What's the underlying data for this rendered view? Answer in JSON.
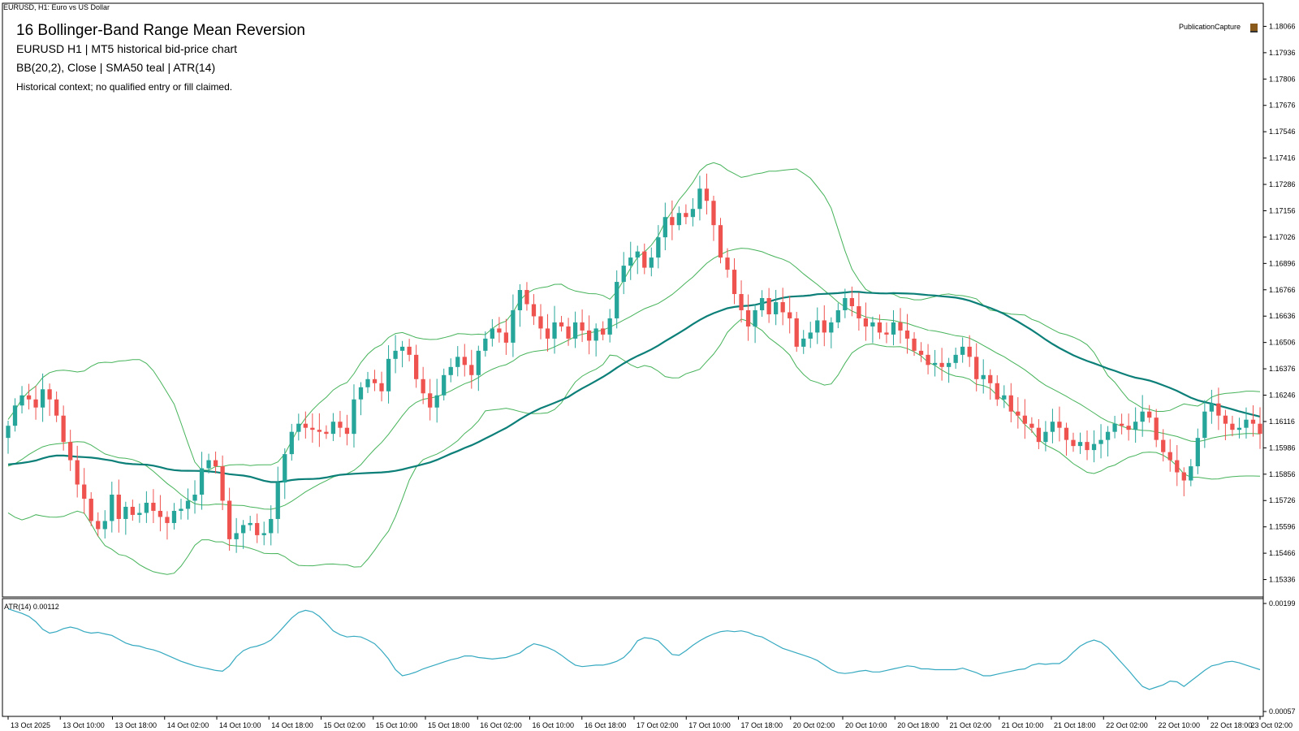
{
  "window": {
    "title": "EURUSD, H1:  Euro vs US Dollar"
  },
  "header": {
    "title": "16  Bollinger-Band Range Mean Reversion",
    "subtitle1": "EURUSD  H1  |  MT5 historical bid-price chart",
    "subtitle2": "BB(20,2), Close | SMA50 teal | ATR(14)",
    "note": "Historical context; no qualified entry or fill claimed."
  },
  "publication_label": "PublicationCapture",
  "colors": {
    "bull": "#26a69a",
    "bear": "#ef5350",
    "sma": "#0b7f78",
    "bb": "#46b35a",
    "atr": "#35a9c0",
    "frame": "#000000",
    "background": "#ffffff"
  },
  "icons": {
    "publication": "picture-icon"
  },
  "chart_data": [
    {
      "type": "candlestick",
      "symbol": "EURUSD",
      "timeframe": "H1",
      "ylim": [
        1.1525,
        1.1818
      ],
      "price_ticks": [
        "1.18066",
        "1.17936",
        "1.17806",
        "1.17676",
        "1.17546",
        "1.17416",
        "1.17286",
        "1.17156",
        "1.17026",
        "1.16896",
        "1.16766",
        "1.16636",
        "1.16506",
        "1.16376",
        "1.16246",
        "1.16116",
        "1.15986",
        "1.15856",
        "1.15726",
        "1.15596",
        "1.15466",
        "1.15336"
      ],
      "time_ticks": [
        "13 Oct 2025",
        "13 Oct 10:00",
        "13 Oct 18:00",
        "14 Oct 02:00",
        "14 Oct 10:00",
        "14 Oct 18:00",
        "15 Oct 02:00",
        "15 Oct 10:00",
        "15 Oct 18:00",
        "16 Oct 02:00",
        "16 Oct 10:00",
        "16 Oct 18:00",
        "17 Oct 02:00",
        "17 Oct 10:00",
        "17 Oct 18:00",
        "20 Oct 02:00",
        "20 Oct 10:00",
        "20 Oct 18:00",
        "21 Oct 02:00",
        "21 Oct 10:00",
        "21 Oct 18:00",
        "22 Oct 02:00",
        "22 Oct 10:00",
        "22 Oct 18:00",
        "23 Oct 02:00"
      ],
      "close_series": [
        1.16095,
        1.16195,
        1.16245,
        1.16225,
        1.16185,
        1.16275,
        1.16225,
        1.16145,
        1.16015,
        1.15925,
        1.15805,
        1.15735,
        1.15625,
        1.15585,
        1.15625,
        1.15755,
        1.15635,
        1.15695,
        1.15655,
        1.15665,
        1.15715,
        1.15675,
        1.15645,
        1.15615,
        1.15675,
        1.15685,
        1.15725,
        1.15755,
        1.15885,
        1.15925,
        1.15895,
        1.15725,
        1.15535,
        1.15565,
        1.15605,
        1.15615,
        1.15555,
        1.15565,
        1.15635,
        1.15815,
        1.15955,
        1.16065,
        1.16105,
        1.16085,
        1.16075,
        1.16065,
        1.16055,
        1.16115,
        1.16085,
        1.16055,
        1.16225,
        1.16285,
        1.16325,
        1.16305,
        1.16265,
        1.16425,
        1.16465,
        1.16485,
        1.16445,
        1.16325,
        1.16255,
        1.16185,
        1.16245,
        1.16345,
        1.16385,
        1.16435,
        1.16395,
        1.16345,
        1.16465,
        1.16525,
        1.16575,
        1.16555,
        1.16505,
        1.16665,
        1.16765,
        1.16695,
        1.16635,
        1.16575,
        1.16525,
        1.16605,
        1.16585,
        1.16525,
        1.16605,
        1.16565,
        1.16515,
        1.16575,
        1.16545,
        1.16625,
        1.16805,
        1.16885,
        1.16925,
        1.16955,
        1.16875,
        1.16925,
        1.17025,
        1.17125,
        1.17085,
        1.17145,
        1.17125,
        1.17165,
        1.17265,
        1.17205,
        1.17085,
        1.16925,
        1.16865,
        1.16745,
        1.16665,
        1.16585,
        1.16665,
        1.16725,
        1.16645,
        1.16705,
        1.16655,
        1.16625,
        1.16485,
        1.16525,
        1.16555,
        1.16615,
        1.16555,
        1.16605,
        1.16665,
        1.16725,
        1.16685,
        1.16625,
        1.16585,
        1.16605,
        1.16555,
        1.16545,
        1.16605,
        1.16565,
        1.16525,
        1.16465,
        1.16445,
        1.16395,
        1.16405,
        1.16385,
        1.16405,
        1.16445,
        1.16485,
        1.16435,
        1.16325,
        1.16345,
        1.16305,
        1.16225,
        1.16245,
        1.16165,
        1.16145,
        1.16105,
        1.16085,
        1.16015,
        1.16065,
        1.16115,
        1.16085,
        1.16025,
        1.15995,
        1.16015,
        1.15975,
        1.16005,
        1.16025,
        1.16065,
        1.16105,
        1.16095,
        1.16075,
        1.16115,
        1.16165,
        1.16135,
        1.16025,
        1.15965,
        1.15925,
        1.15865,
        1.15825,
        1.15895,
        1.16035,
        1.16165,
        1.16205,
        1.16145,
        1.16105,
        1.16075,
        1.16085,
        1.16125,
        1.16105,
        1.16055
      ],
      "overlays": [
        "BB(20,2) upper",
        "BB(20,2) middle",
        "BB(20,2) lower",
        "SMA50"
      ]
    },
    {
      "type": "line",
      "title": "ATR(14) 0.00112",
      "ylim": [
        0.00057,
        0.00199
      ],
      "y_ticks": [
        "0.00199",
        "0.00057"
      ],
      "values": [
        0.00192,
        0.00189,
        0.00186,
        0.00182,
        0.00175,
        0.00165,
        0.0016,
        0.00162,
        0.00166,
        0.00168,
        0.00166,
        0.00162,
        0.0016,
        0.00161,
        0.00159,
        0.00157,
        0.00152,
        0.00147,
        0.00144,
        0.00143,
        0.0014,
        0.00138,
        0.00135,
        0.00131,
        0.00127,
        0.00123,
        0.0012,
        0.00117,
        0.00115,
        0.00113,
        0.00111,
        0.0011,
        0.00117,
        0.00129,
        0.00137,
        0.00141,
        0.00143,
        0.00146,
        0.00151,
        0.0016,
        0.0017,
        0.0018,
        0.00187,
        0.0019,
        0.00188,
        0.00182,
        0.00173,
        0.00163,
        0.00158,
        0.00155,
        0.00156,
        0.00155,
        0.00151,
        0.00146,
        0.00137,
        0.00126,
        0.00112,
        0.00104,
        0.00106,
        0.00109,
        0.00113,
        0.00116,
        0.00119,
        0.00122,
        0.00125,
        0.00127,
        0.0013,
        0.0013,
        0.00128,
        0.00127,
        0.00126,
        0.00127,
        0.00128,
        0.00131,
        0.00134,
        0.00141,
        0.00146,
        0.00144,
        0.00141,
        0.00137,
        0.00131,
        0.00124,
        0.00118,
        0.00116,
        0.00117,
        0.00118,
        0.00118,
        0.0012,
        0.00123,
        0.00128,
        0.00137,
        0.0015,
        0.00154,
        0.00153,
        0.0015,
        0.00141,
        0.00132,
        0.00131,
        0.00137,
        0.00144,
        0.0015,
        0.00155,
        0.00159,
        0.00162,
        0.00163,
        0.00162,
        0.00163,
        0.00161,
        0.00157,
        0.00155,
        0.0015,
        0.00145,
        0.0014,
        0.00137,
        0.00134,
        0.00131,
        0.00128,
        0.00124,
        0.00118,
        0.00112,
        0.00108,
        0.00107,
        0.00108,
        0.0011,
        0.00111,
        0.00109,
        0.00109,
        0.00111,
        0.00113,
        0.00115,
        0.00117,
        0.00116,
        0.00113,
        0.00113,
        0.00112,
        0.00112,
        0.00112,
        0.00112,
        0.00114,
        0.00111,
        0.00108,
        0.00104,
        0.00104,
        0.00106,
        0.00108,
        0.0011,
        0.00112,
        0.00113,
        0.00118,
        0.0012,
        0.00119,
        0.0012,
        0.0012,
        0.00126,
        0.00135,
        0.00143,
        0.00148,
        0.00151,
        0.00148,
        0.00141,
        0.00131,
        0.00121,
        0.00111,
        0.001,
        0.0009,
        0.00086,
        0.00089,
        0.00092,
        0.00097,
        0.00096,
        0.0009,
        0.00097,
        0.00104,
        0.00111,
        0.00117,
        0.00119,
        0.00122,
        0.00123,
        0.00121,
        0.00118,
        0.00115,
        0.00112
      ]
    }
  ]
}
